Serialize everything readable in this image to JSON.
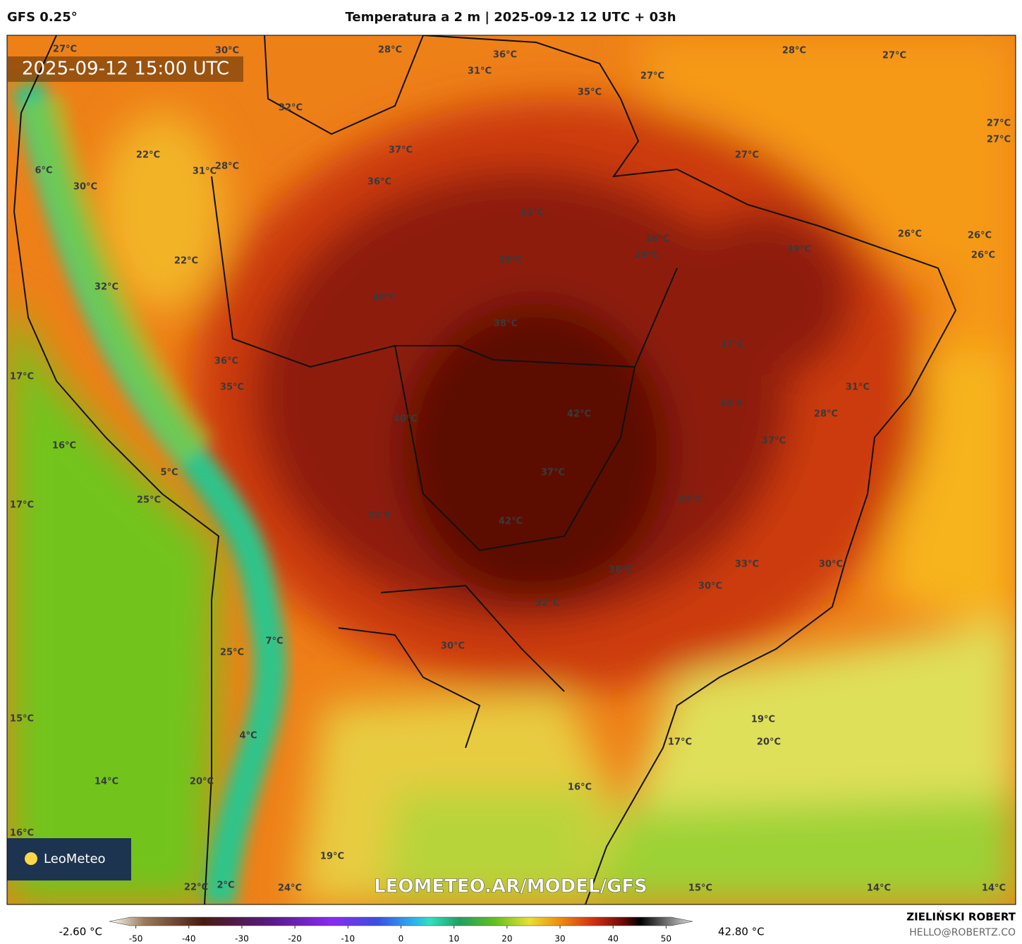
{
  "header": {
    "model": "GFS 0.25°",
    "title": "Temperatura a 2 m | 2025-09-12 12 UTC + 03h",
    "valid_time": "2025-09-12 15:00 UTC"
  },
  "map": {
    "labels": [
      "27°C",
      "30°C",
      "28°C",
      "36°C",
      "28°C",
      "27°C",
      "31°C",
      "27°C",
      "35°C",
      "32°C",
      "27°C",
      "27°C",
      "37°C",
      "22°C",
      "27°C",
      "31°C",
      "28°C",
      "6°C",
      "36°C",
      "30°C",
      "33°C",
      "26°C",
      "36°C",
      "26°C",
      "39°C",
      "28°C",
      "26°C",
      "39°C",
      "22°C",
      "32°C",
      "40°C",
      "38°C",
      "37°C",
      "36°C",
      "17°C",
      "35°C",
      "31°C",
      "34°C",
      "42°C",
      "28°C",
      "40°C",
      "37°C",
      "16°C",
      "37°C",
      "5°C",
      "25°C",
      "33°C",
      "17°C",
      "32°C",
      "42°C",
      "33°C",
      "30°C",
      "38°C",
      "30°C",
      "32°C",
      "7°C",
      "30°C",
      "25°C",
      "15°C",
      "19°C",
      "4°C",
      "17°C",
      "20°C",
      "14°C",
      "16°C",
      "20°C",
      "16°C",
      "19°C",
      "22°C",
      "2°C",
      "24°C",
      "15°C",
      "14°C",
      "14°C"
    ],
    "watermark": "LEOMETEO.AR/MODEL/GFS",
    "logo": "LeoMeteo"
  },
  "colorbar": {
    "min_label": "-2.60 °C",
    "max_label": "42.80 °C",
    "range": [
      -55,
      55
    ],
    "ticks": [
      -50,
      -40,
      -30,
      -20,
      -10,
      0,
      10,
      20,
      30,
      40,
      50
    ]
  },
  "footer": {
    "author": "ZIELIŃSKI ROBERT",
    "email": "HELLO@ROBERTZ.CO"
  }
}
